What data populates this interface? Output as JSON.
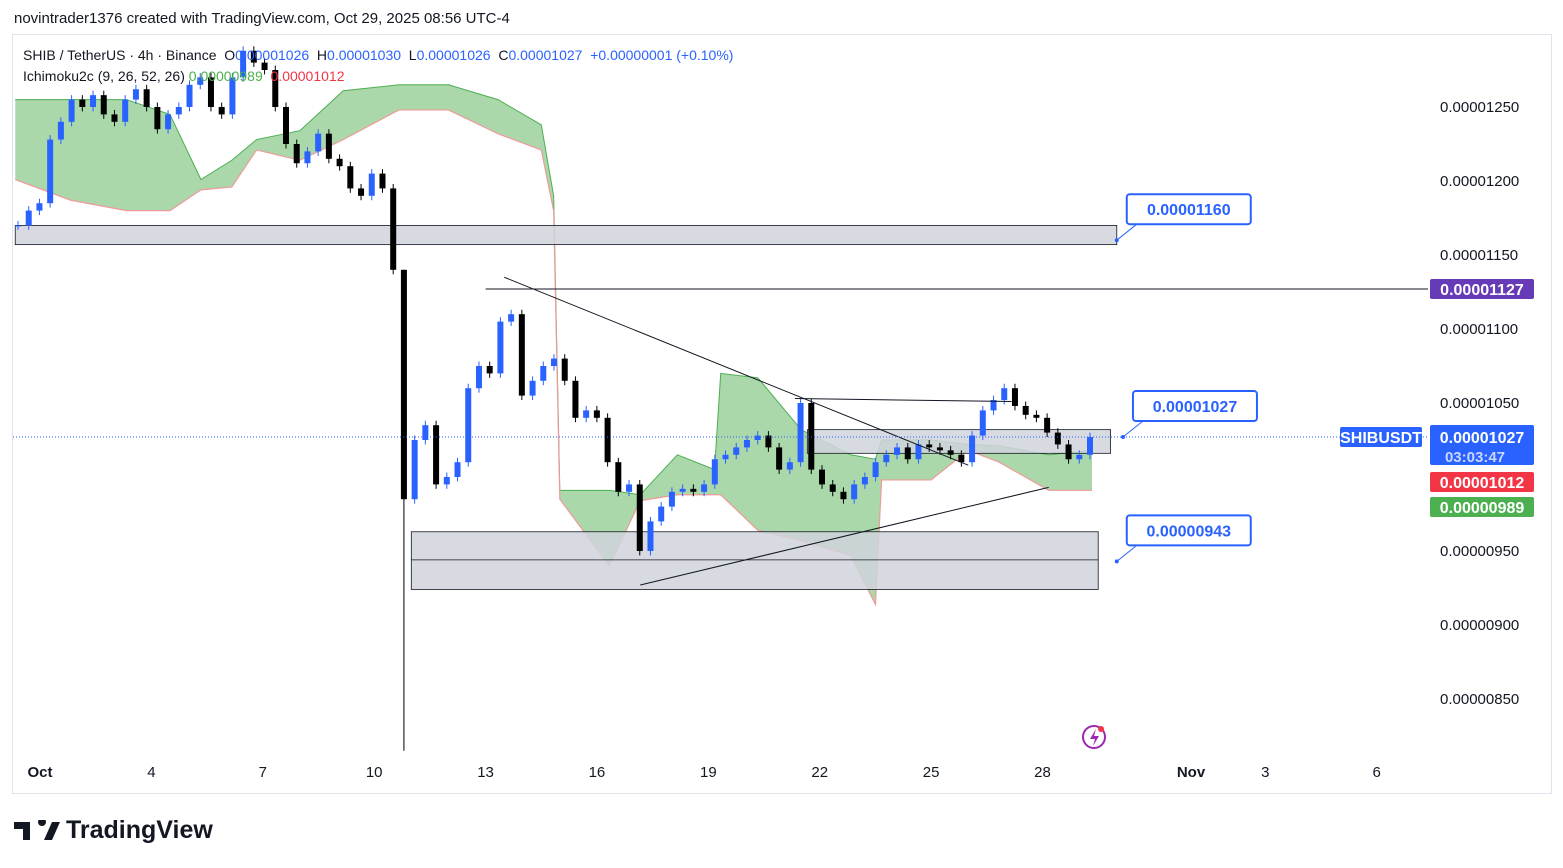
{
  "header": {
    "credit": "novintrader1376 created with TradingView.com, Oct 29, 2025 08:56 UTC-4"
  },
  "legend": {
    "symbol": "SHIB / TetherUS · 4h · Binance",
    "o_label": "O",
    "o": "0.00001026",
    "h_label": "H",
    "h": "0.00001030",
    "l_label": "L",
    "l": "0.00001026",
    "c_label": "C",
    "c": "0.00001027",
    "change": "+0.00000001 (+0.10%)",
    "indicator": "Ichimoku2c (9, 26, 52, 26)",
    "ind_a": "0.00000989",
    "ind_b": "0.00001012"
  },
  "brand": "TradingView",
  "colors": {
    "up": "#2962ff",
    "down": "#000000",
    "cloud": "#a5d6a7",
    "span_a": "#4caf50",
    "span_b": "#ef9a9a",
    "zone": "#d1d4dc",
    "purple": "#673ab7",
    "accent": "#2962ff"
  },
  "chart_data": {
    "type": "candlestick",
    "symbol": "SHIBUSDT",
    "interval": "4h",
    "y_ticks": [
      "0.00001250",
      "0.00001200",
      "0.00001150",
      "0.00001100",
      "0.00001050",
      "0.00000950",
      "0.00000900",
      "0.00000850"
    ],
    "x_ticks": [
      {
        "label": "Oct",
        "date": "2025-10-01"
      },
      {
        "label": "4",
        "date": "2025-10-04"
      },
      {
        "label": "7",
        "date": "2025-10-07"
      },
      {
        "label": "10",
        "date": "2025-10-10"
      },
      {
        "label": "13",
        "date": "2025-10-13"
      },
      {
        "label": "16",
        "date": "2025-10-16"
      },
      {
        "label": "19",
        "date": "2025-10-19"
      },
      {
        "label": "22",
        "date": "2025-10-22"
      },
      {
        "label": "25",
        "date": "2025-10-25"
      },
      {
        "label": "28",
        "date": "2025-10-28"
      },
      {
        "label": "Nov",
        "date": "2025-11-01"
      },
      {
        "label": "3",
        "date": "2025-11-03"
      },
      {
        "label": "6",
        "date": "2025-11-06"
      }
    ],
    "closes": [
      1.17e-05,
      1.18e-05,
      1.185e-05,
      1.228e-05,
      1.24e-05,
      1.255e-05,
      1.25e-05,
      1.258e-05,
      1.245e-05,
      1.24e-05,
      1.255e-05,
      1.262e-05,
      1.25e-05,
      1.235e-05,
      1.245e-05,
      1.25e-05,
      1.265e-05,
      1.27e-05,
      1.25e-05,
      1.245e-05,
      1.27e-05,
      1.288e-05,
      1.28e-05,
      1.275e-05,
      1.25e-05,
      1.225e-05,
      1.212e-05,
      1.22e-05,
      1.232e-05,
      1.215e-05,
      1.21e-05,
      1.195e-05,
      1.19e-05,
      1.205e-05,
      1.195e-05,
      1.14e-05,
      9.85e-06,
      1.025e-05,
      1.035e-05,
      9.95e-06,
      1e-05,
      1.01e-05,
      1.06e-05,
      1.075e-05,
      1.07e-05,
      1.105e-05,
      1.11e-05,
      1.055e-05,
      1.065e-05,
      1.075e-05,
      1.08e-05,
      1.065e-05,
      1.04e-05,
      1.045e-05,
      1.04e-05,
      1.01e-05,
      9.9e-06,
      9.95e-06,
      9.5e-06,
      9.7e-06,
      9.8e-06,
      9.9e-06,
      9.92e-06,
      9.9e-06,
      9.95e-06,
      1.012e-05,
      1.015e-05,
      1.02e-05,
      1.025e-05,
      1.028e-05,
      1.02e-05,
      1.005e-05,
      1.01e-05,
      1.05e-05,
      1.005e-05,
      9.95e-06,
      9.9e-06,
      9.85e-06,
      9.95e-06,
      1e-05,
      1.01e-05,
      1.015e-05,
      1.02e-05,
      1.012e-05,
      1.022e-05,
      1.02e-05,
      1.018e-05,
      1.015e-05,
      1.01e-05,
      1.028e-05,
      1.045e-05,
      1.052e-05,
      1.06e-05,
      1.048e-05,
      1.042e-05,
      1.04e-05,
      1.03e-05,
      1.022e-05,
      1.012e-05,
      1.015e-05,
      1.027e-05
    ],
    "wicks": [
      {
        "index": 36,
        "high": 1.14e-05,
        "low": 8.15e-06
      }
    ],
    "cloud": [
      [
        "2025-09-30T08:00",
        1.255e-05,
        1.201e-05
      ],
      [
        "2025-10-01T20:00",
        1.255e-05,
        1.187e-05
      ],
      [
        "2025-10-03T08:00",
        1.255e-05,
        1.18e-05
      ],
      [
        "2025-10-04T12:00",
        1.245e-05,
        1.18e-05
      ],
      [
        "2025-10-05T08:00",
        1.201e-05,
        1.194e-05
      ],
      [
        "2025-10-06T04:00",
        1.214e-05,
        1.196e-05
      ],
      [
        "2025-10-06T20:00",
        1.228e-05,
        1.221e-05
      ],
      [
        "2025-10-08T00:00",
        1.234e-05,
        1.214e-05
      ],
      [
        "2025-10-09T04:00",
        1.261e-05,
        1.228e-05
      ],
      [
        "2025-10-10T16:00",
        1.265e-05,
        1.248e-05
      ],
      [
        "2025-10-12T00:00",
        1.265e-05,
        1.248e-05
      ],
      [
        "2025-10-13T08:00",
        1.255e-05,
        1.232e-05
      ],
      [
        "2025-10-14T12:00",
        1.238e-05,
        1.221e-05
      ],
      [
        "2025-10-14T20:00",
        1.19e-05,
        1.18e-05
      ],
      [
        "2025-10-15T00:00",
        9.91e-06,
        9.85e-06
      ],
      [
        "2025-10-16T08:00",
        9.91e-06,
        9.4e-06
      ],
      [
        "2025-10-17T04:00",
        9.88e-06,
        9.84e-06
      ],
      [
        "2025-10-18T04:00",
        1.015e-05,
        9.88e-06
      ],
      [
        "2025-10-19T04:00",
        1.005e-05,
        9.88e-06
      ],
      [
        "2025-10-19T08:00",
        1.07e-05,
        9.88e-06
      ],
      [
        "2025-10-20T08:00",
        1.067e-05,
        9.64e-06
      ],
      [
        "2025-10-21T12:00",
        1.032e-05,
        9.57e-06
      ],
      [
        "2025-10-22T20:00",
        1.015e-05,
        9.47e-06
      ],
      [
        "2025-10-23T12:00",
        1.012e-05,
        9.14e-06
      ],
      [
        "2025-10-23T16:00",
        1.025e-05,
        9.98e-06
      ],
      [
        "2025-10-25T00:00",
        1.025e-05,
        9.98e-06
      ],
      [
        "2025-10-26T00:00",
        1.022e-05,
        1.018e-05
      ],
      [
        "2025-10-26T20:00",
        1.021e-05,
        1.01e-05
      ],
      [
        "2025-10-28T04:00",
        1.015e-05,
        9.91e-06
      ],
      [
        "2025-10-29T08:00",
        1.018e-05,
        9.91e-06
      ]
    ],
    "zones": [
      {
        "top": 1.17e-05,
        "bottom": 1.157e-05,
        "from": "2025-09-30T08:00",
        "to": "2025-10-30T00:00"
      },
      {
        "top": 1.032e-05,
        "bottom": 1.016e-05,
        "from": "2025-10-21T16:00",
        "to": "2025-10-29T20:00"
      },
      {
        "top": 9.63e-06,
        "bottom": 9.24e-06,
        "mid": 9.44e-06,
        "from": "2025-10-11T00:00",
        "to": "2025-10-29T12:00"
      }
    ],
    "trendlines": [
      [
        [
          "2025-10-13T12:00",
          1.135e-05
        ],
        [
          "2025-10-26T00:00",
          1.008e-05
        ]
      ],
      [
        [
          "2025-10-17T04:00",
          9.27e-06
        ],
        [
          "2025-10-28T04:00",
          9.93e-06
        ]
      ],
      [
        [
          "2025-10-21T08:00",
          1.053e-05
        ],
        [
          "2025-10-27T04:00",
          1.051e-05
        ]
      ]
    ],
    "hline": {
      "price": 1.127e-05,
      "from": "2025-10-13T00:00",
      "label": "0.00001127"
    },
    "callouts": [
      {
        "label": "0.00001160",
        "date": "2025-10-30T00:00",
        "price": 1.16e-05
      },
      {
        "label": "0.00001027",
        "date": "2025-10-30T04:00",
        "price": 1.027e-05
      },
      {
        "label": "0.00000943",
        "date": "2025-10-30T00:00",
        "price": 9.43e-06
      }
    ],
    "last_price": {
      "symbol_label": "SHIBUSDT",
      "price": "0.00001027",
      "countdown": "03:03:47",
      "value": 1.027e-05
    },
    "ichimoku_labels": [
      {
        "text": "0.00001012",
        "color": "#f23645"
      },
      {
        "text": "0.00000989",
        "color": "#4caf50"
      }
    ]
  }
}
